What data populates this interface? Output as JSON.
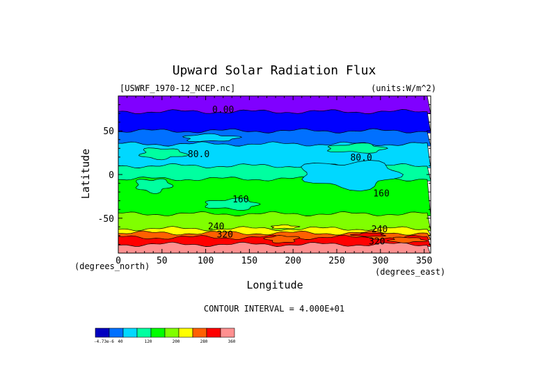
{
  "chart_data": {
    "type": "heatmap",
    "title": "Upward Solar Radiation Flux",
    "subtitle_left": "[USWRF_1970-12_NCEP.nc]",
    "subtitle_right": "(units:W/m^2)",
    "xlabel": "Longitude",
    "ylabel": "Latitude",
    "x_units": "(degrees_east)",
    "y_units": "(degrees_north)",
    "xlim": [
      0,
      357.5
    ],
    "ylim": [
      -90,
      90
    ],
    "x_ticks": [
      0,
      50,
      100,
      150,
      200,
      250,
      300,
      350
    ],
    "y_ticks": [
      -50,
      0,
      50
    ],
    "contour_interval_text": "CONTOUR INTERVAL = 4.000E+01",
    "contour_labels": [
      {
        "text": "0.00",
        "lon": 120,
        "lat": 71
      },
      {
        "text": "80.0",
        "lon": 92,
        "lat": 20
      },
      {
        "text": "80.0",
        "lon": 278,
        "lat": 16
      },
      {
        "text": "160",
        "lon": 140,
        "lat": -32
      },
      {
        "text": "160",
        "lon": 301,
        "lat": -25
      },
      {
        "text": "240",
        "lon": 112,
        "lat": -63
      },
      {
        "text": "240",
        "lon": 299,
        "lat": -66
      },
      {
        "text": "320",
        "lon": 122,
        "lat": -72
      },
      {
        "text": "320",
        "lon": 296,
        "lat": -80
      }
    ],
    "zonal_bands": [
      {
        "lat_min": 72,
        "lat_max": 90,
        "value": -20,
        "color": "#8000ff"
      },
      {
        "lat_min": 50,
        "lat_max": 72,
        "value": 20,
        "color": "#0000ff"
      },
      {
        "lat_min": 35,
        "lat_max": 50,
        "value": 60,
        "color": "#0070ff"
      },
      {
        "lat_min": 10,
        "lat_max": 35,
        "value": 100,
        "color": "#00d8ff"
      },
      {
        "lat_min": -5,
        "lat_max": 10,
        "value": 140,
        "color": "#00ffa0"
      },
      {
        "lat_min": -45,
        "lat_max": -5,
        "value": 180,
        "color": "#00ff00"
      },
      {
        "lat_min": -62,
        "lat_max": -45,
        "value": 220,
        "color": "#80ff00"
      },
      {
        "lat_min": -67,
        "lat_max": -62,
        "value": 260,
        "color": "#ffff00"
      },
      {
        "lat_min": -72,
        "lat_max": -67,
        "value": 300,
        "color": "#ff6000"
      },
      {
        "lat_min": -80,
        "lat_max": -72,
        "value": 340,
        "color": "#ff0000"
      },
      {
        "lat_min": -90,
        "lat_max": -80,
        "value": 380,
        "color": "#ff9090"
      }
    ],
    "patches": [
      {
        "lon_min": 25,
        "lon_max": 75,
        "lat_min": 18,
        "lat_max": 30,
        "value": 140,
        "color": "#00ffa0"
      },
      {
        "lon_min": 210,
        "lon_max": 320,
        "lat_min": -15,
        "lat_max": 15,
        "value": 100,
        "color": "#00d8ff"
      },
      {
        "lon_min": 240,
        "lon_max": 305,
        "lat_min": 25,
        "lat_max": 35,
        "value": 140,
        "color": "#00ffa0"
      },
      {
        "lon_min": 75,
        "lon_max": 135,
        "lat_min": 38,
        "lat_max": 46,
        "value": 100,
        "color": "#00d8ff"
      },
      {
        "lon_min": 170,
        "lon_max": 205,
        "lat_min": -78,
        "lat_max": -70,
        "value": 300,
        "color": "#ff6000"
      },
      {
        "lon_min": 270,
        "lon_max": 305,
        "lat_min": -71,
        "lat_max": -67,
        "value": 340,
        "color": "#ff0000"
      },
      {
        "lon_min": 310,
        "lon_max": 350,
        "lat_min": -78,
        "lat_max": -72,
        "value": 300,
        "color": "#ff6000"
      },
      {
        "lon_min": 20,
        "lon_max": 60,
        "lat_min": -20,
        "lat_max": -5,
        "value": 140,
        "color": "#00ffa0"
      },
      {
        "lon_min": 100,
        "lon_max": 160,
        "lat_min": -40,
        "lat_max": -28,
        "value": 140,
        "color": "#00ffa0"
      },
      {
        "lon_min": 175,
        "lon_max": 205,
        "lat_min": -62,
        "lat_max": -58,
        "value": 260,
        "color": "#ffff00"
      }
    ],
    "colorbar": {
      "colors": [
        "#0000c0",
        "#0070ff",
        "#00d8ff",
        "#00ffa0",
        "#00ff00",
        "#80ff00",
        "#ffff00",
        "#ff6000",
        "#ff0000",
        "#ff9090"
      ],
      "tick_labels": [
        "-4.73e-6",
        "40",
        "120",
        "200",
        "280",
        "360"
      ]
    }
  }
}
